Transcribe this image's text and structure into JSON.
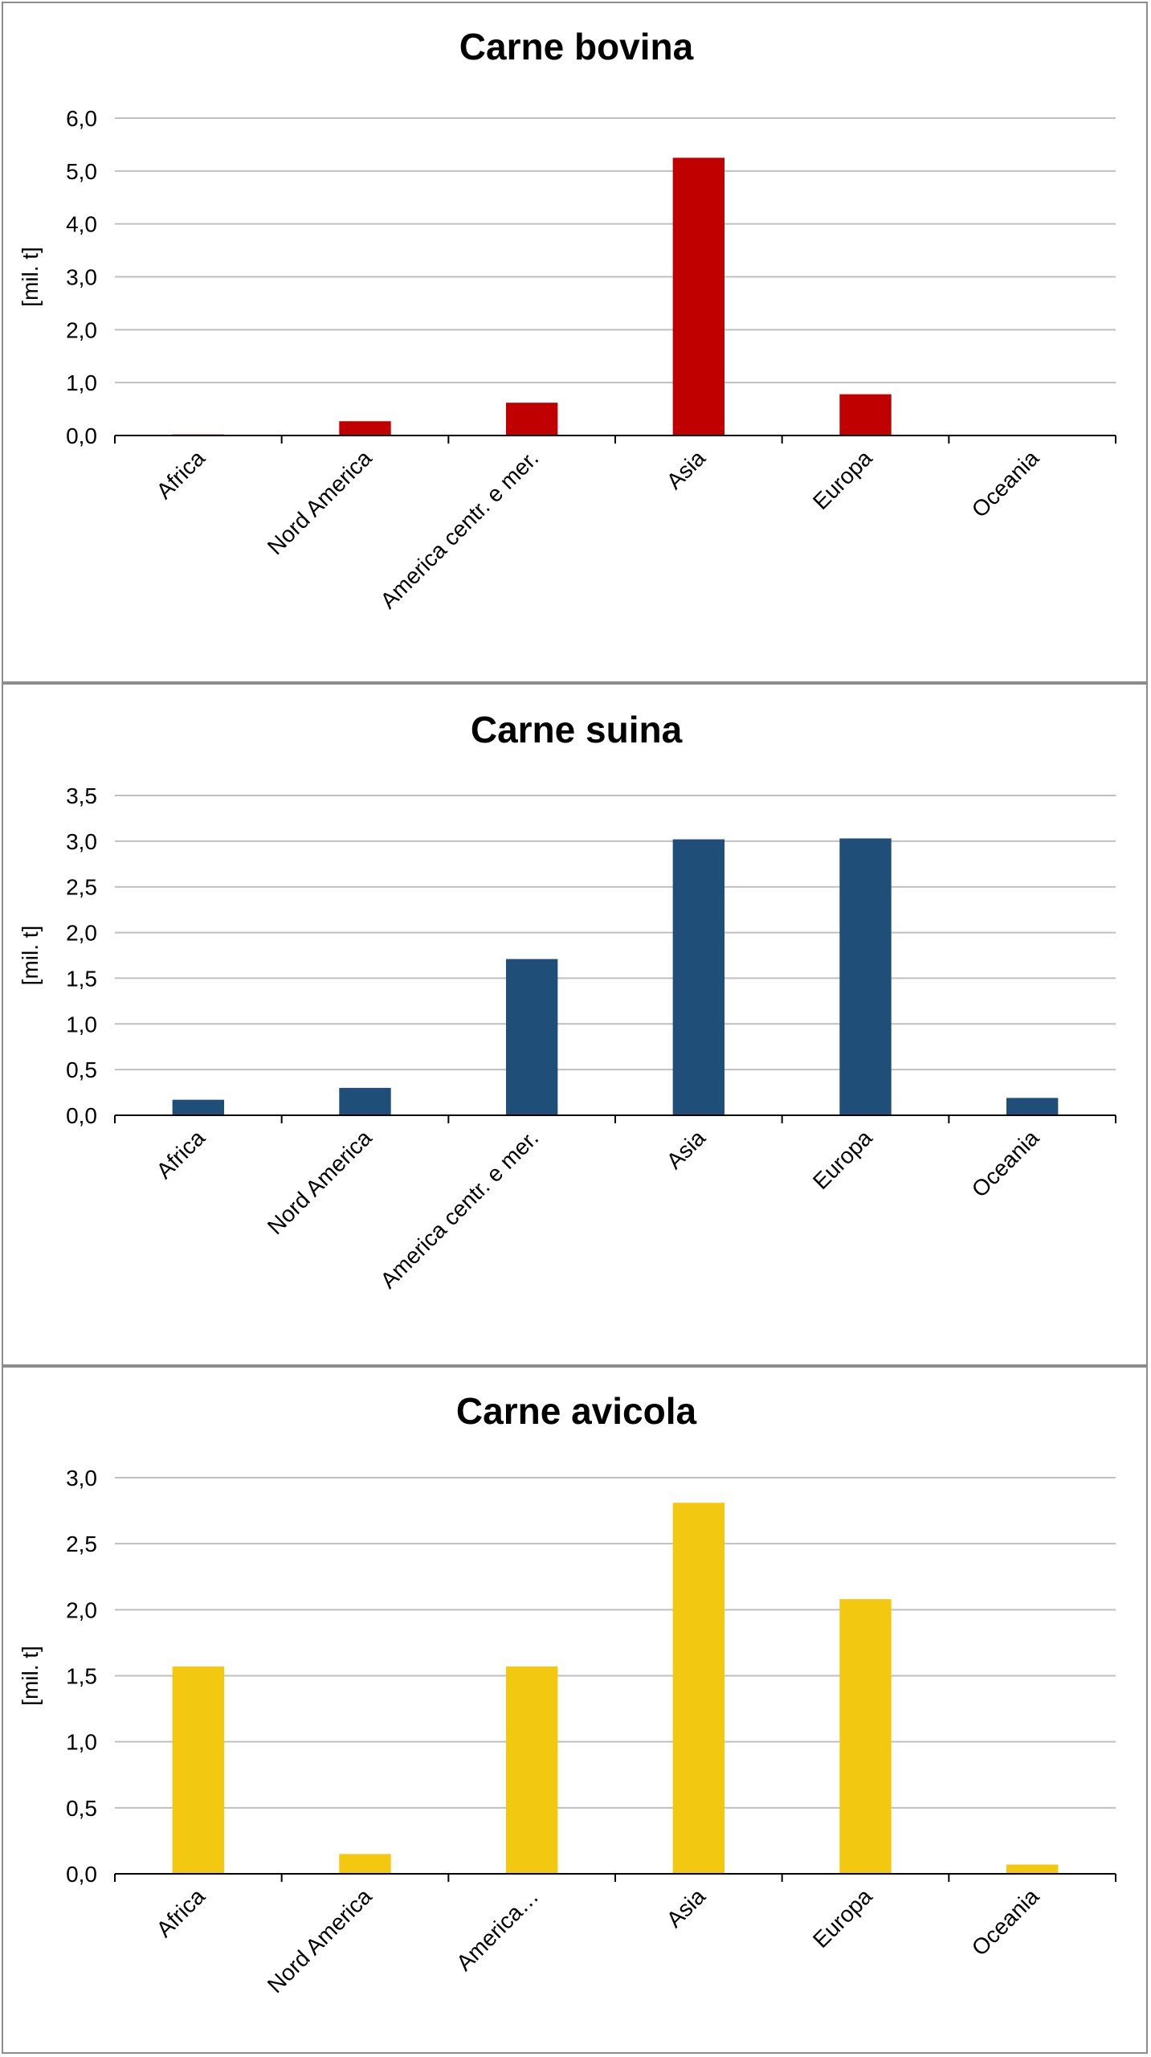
{
  "chart_data": [
    {
      "type": "bar",
      "title": "Carne bovina",
      "ylabel": "[mil. t]",
      "xlabel": "",
      "categories": [
        "Africa",
        "Nord America",
        "America centr. e mer.",
        "Asia",
        "Europa",
        "Oceania"
      ],
      "values": [
        0.02,
        0.27,
        0.62,
        5.25,
        0.78,
        0.0
      ],
      "ylim": [
        0,
        6
      ],
      "yticks": [
        "0,0",
        "1,0",
        "2,0",
        "3,0",
        "4,0",
        "5,0",
        "6,0"
      ],
      "color": "#C00000",
      "grid": true,
      "legend": "none"
    },
    {
      "type": "bar",
      "title": "Carne suina",
      "ylabel": "[mil. t]",
      "xlabel": "",
      "categories": [
        "Africa",
        "Nord America",
        "America centr. e mer.",
        "Asia",
        "Europa",
        "Oceania"
      ],
      "values": [
        0.17,
        0.3,
        1.71,
        3.02,
        3.03,
        0.19
      ],
      "ylim": [
        0,
        3.5
      ],
      "yticks": [
        "0,0",
        "0,5",
        "1,0",
        "1,5",
        "2,0",
        "2,5",
        "3,0",
        "3,5"
      ],
      "color": "#1F4E79",
      "grid": true,
      "legend": "none"
    },
    {
      "type": "bar",
      "title": "Carne avicola",
      "ylabel": "[mil. t]",
      "xlabel": "",
      "categories": [
        "Africa",
        "Nord America",
        "America…",
        "Asia",
        "Europa",
        "Oceania"
      ],
      "values": [
        1.57,
        0.15,
        1.57,
        2.81,
        2.08,
        0.07
      ],
      "ylim": [
        0,
        3
      ],
      "yticks": [
        "0,0",
        "0,5",
        "1,0",
        "1,5",
        "2,0",
        "2,5",
        "3,0"
      ],
      "color": "#F2C811",
      "grid": true,
      "legend": "none"
    }
  ]
}
